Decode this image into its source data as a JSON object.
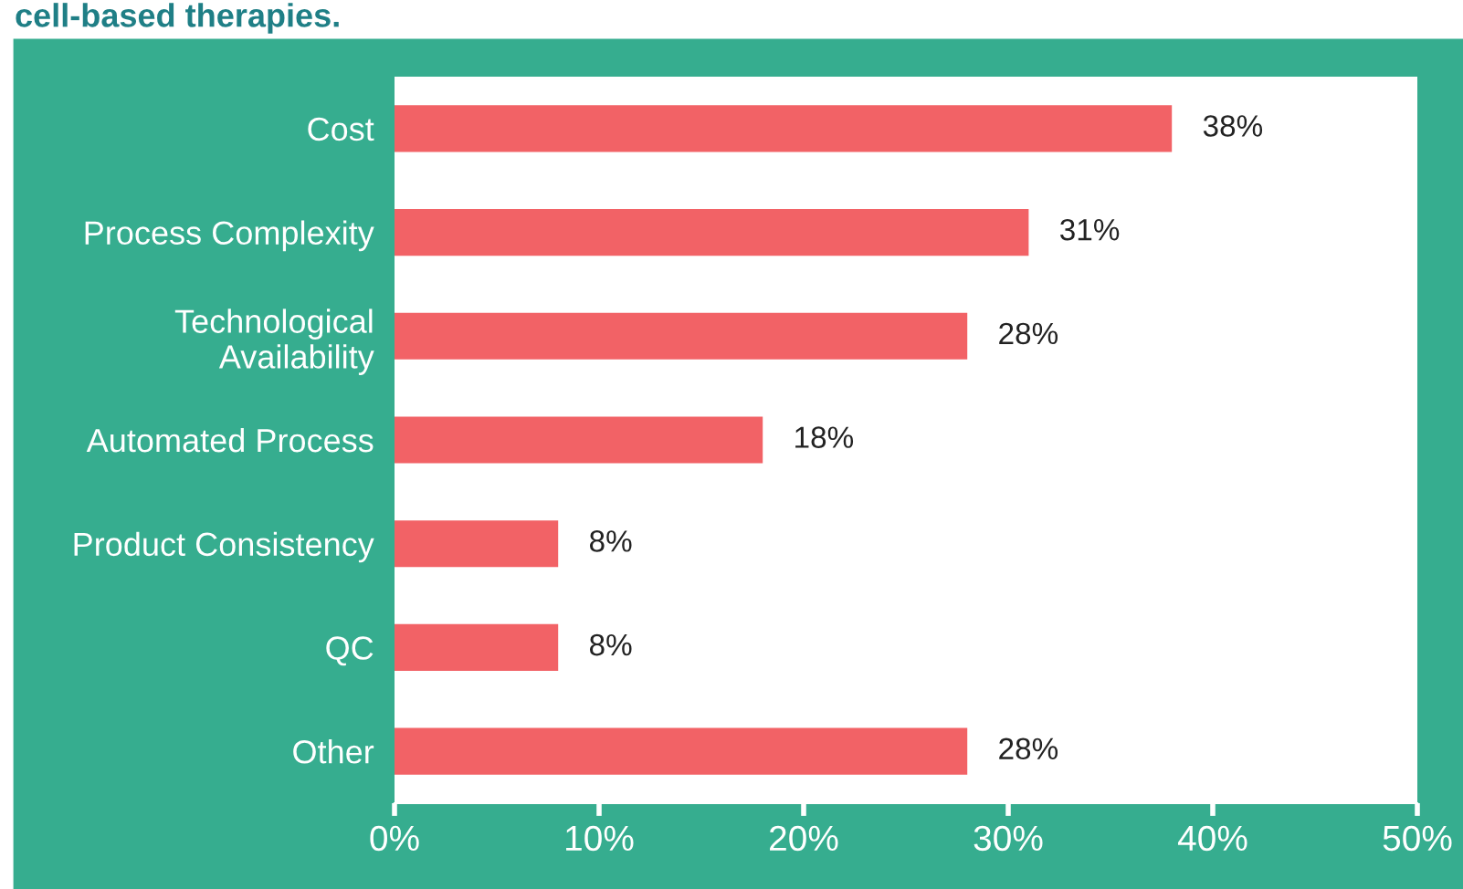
{
  "chart_data": {
    "type": "bar",
    "orientation": "horizontal",
    "title": "cell-based therapies.",
    "categories": [
      "Cost",
      "Process Complexity",
      "Technological\nAvailability",
      "Automated Process",
      "Product Consistency",
      "QC",
      "Other"
    ],
    "values": [
      38,
      31,
      28,
      18,
      8,
      8,
      28
    ],
    "color": "#f26266",
    "xlim": [
      0,
      50
    ],
    "xticks": [
      {
        "value": 0,
        "label": "0%"
      },
      {
        "value": 10,
        "label": "10%"
      },
      {
        "value": 20,
        "label": "20%"
      },
      {
        "value": 30,
        "label": "30%"
      },
      {
        "value": 40,
        "label": "40%"
      },
      {
        "value": 50,
        "label": "50%"
      }
    ],
    "value_labels": [
      "38%",
      "31%",
      "28%",
      "18%",
      "8%",
      "8%",
      "28%"
    ],
    "grid": false,
    "legend": false
  }
}
